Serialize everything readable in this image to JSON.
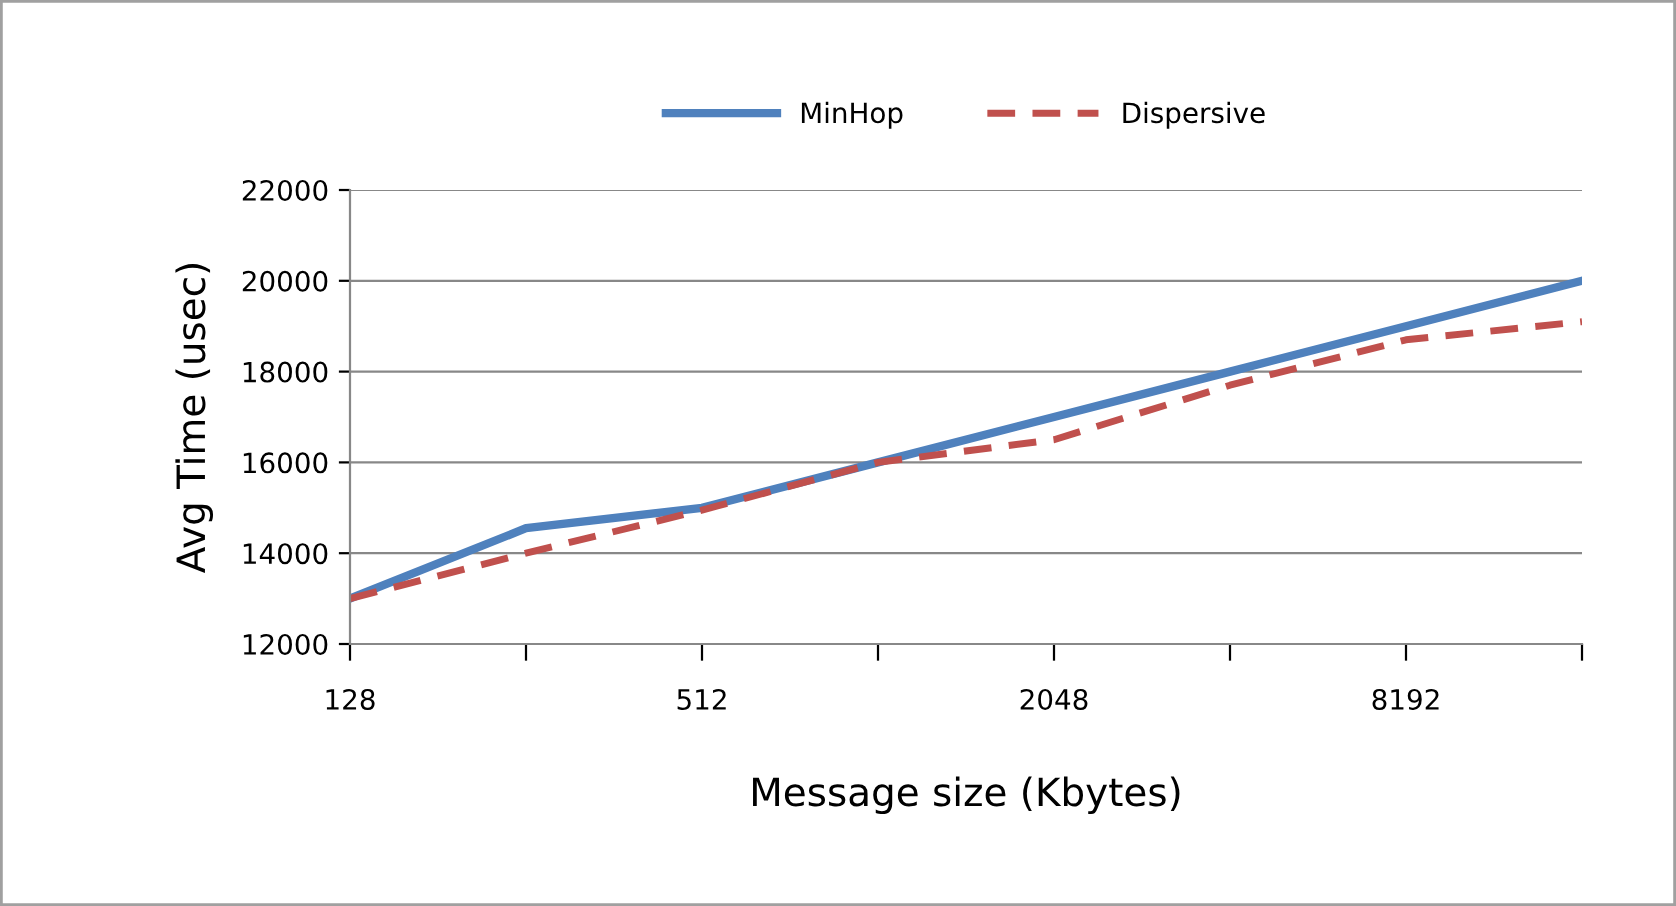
{
  "chart_data": {
    "type": "line",
    "xlabel": "Message size (Kbytes)",
    "ylabel": "Avg Time (usec)",
    "categories": [
      "128",
      null,
      "512",
      null,
      "2048",
      null,
      "8192",
      null
    ],
    "series": [
      {
        "name": "MinHop",
        "color": "#4f81bd",
        "line_style": "solid",
        "values": [
          13000,
          14550,
          15000,
          16000,
          17000,
          18000,
          19000,
          20000
        ]
      },
      {
        "name": "Dispersive",
        "color": "#c0504d",
        "line_style": "dashed",
        "values": [
          13000,
          14000,
          14950,
          16000,
          16500,
          17700,
          18700,
          19100
        ]
      }
    ],
    "ylim": [
      12000,
      22000
    ],
    "yticks": [
      12000,
      14000,
      16000,
      18000,
      20000,
      22000
    ],
    "grid": "y",
    "legend": "top",
    "marker": "none"
  }
}
